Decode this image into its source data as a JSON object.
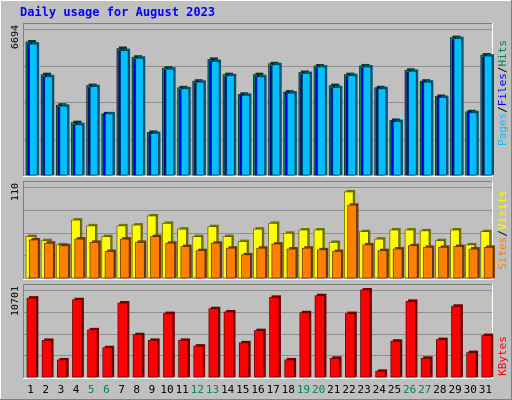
{
  "title": "Daily usage for August 2023",
  "colors": {
    "background": "#c0c0c0",
    "title": "#0000ff",
    "hits": "#00805c",
    "files": "#0000ff",
    "pages": "#00c0ff",
    "visits": "#ffff00",
    "sites": "#ff8000",
    "kbytes": "#ff0000",
    "weekend_day": "#00805c",
    "weekday": "#000000"
  },
  "legends": {
    "top": [
      {
        "label": "Pages",
        "color": "#00c0ff"
      },
      {
        "label": "Files",
        "color": "#0000ff"
      },
      {
        "label": "Hits",
        "color": "#00805c"
      }
    ],
    "middle": [
      {
        "label": "Sites",
        "color": "#ff8000"
      },
      {
        "label": "Visits",
        "color": "#ffff00"
      }
    ],
    "bottom": [
      {
        "label": "KBytes",
        "color": "#ff0000"
      }
    ],
    "separator": "/"
  },
  "chart_data": {
    "type": "bar",
    "title": "Daily usage for August 2023",
    "categories": [
      "1",
      "2",
      "3",
      "4",
      "5",
      "6",
      "7",
      "8",
      "9",
      "10",
      "11",
      "12",
      "13",
      "14",
      "15",
      "16",
      "17",
      "18",
      "19",
      "20",
      "21",
      "22",
      "23",
      "24",
      "25",
      "26",
      "27",
      "28",
      "29",
      "30",
      "31"
    ],
    "weekend_days": [
      "5",
      "6",
      "12",
      "13",
      "19",
      "20",
      "26",
      "27"
    ],
    "panels": [
      {
        "name": "hits-files-pages",
        "ymax_label": "6694",
        "ylim": [
          0,
          6694
        ],
        "series": [
          {
            "name": "Hits",
            "values": [
              6100,
              4600,
              3200,
              2400,
              4100,
              2800,
              5800,
              5400,
              1950,
              4900,
              4000,
              4300,
              5300,
              4600,
              3700,
              4600,
              5100,
              3800,
              4700,
              5000,
              4100,
              4600,
              5000,
              4000,
              2500,
              4800,
              4300,
              3600,
              6300,
              2900,
              5500
            ]
          },
          {
            "name": "Files",
            "values": [
              6000,
              4500,
              3100,
              2300,
              4000,
              2800,
              5700,
              5300,
              1900,
              4800,
              3900,
              4200,
              5200,
              4500,
              3650,
              4500,
              5000,
              3750,
              4600,
              4900,
              4000,
              4500,
              4900,
              3950,
              2450,
              4700,
              4250,
              3550,
              6200,
              2850,
              5400
            ]
          },
          {
            "name": "Pages",
            "values": [
              6000,
              4500,
              3150,
              2300,
              4050,
              2800,
              5700,
              5350,
              1900,
              4850,
              3950,
              4250,
              5200,
              4550,
              3650,
              4500,
              5050,
              3750,
              4650,
              4950,
              4000,
              4550,
              4950,
              3950,
              2450,
              4750,
              4250,
              3550,
              6250,
              2850,
              5450
            ]
          }
        ]
      },
      {
        "name": "visits-sites",
        "ymax_label": "110",
        "ylim": [
          0,
          110
        ],
        "series": [
          {
            "name": "Visits",
            "values": [
              50,
              45,
              40,
              70,
              63,
              50,
              63,
              64,
              75,
              66,
              59,
              50,
              62,
              50,
              44,
              59,
              66,
              54,
              58,
              58,
              43,
              104,
              56,
              47,
              58,
              58,
              57,
              45,
              58,
              40,
              56
            ]
          },
          {
            "name": "Sites",
            "values": [
              46,
              42,
              39,
              47,
              43,
              32,
              47,
              43,
              50,
              42,
              38,
              33,
              42,
              36,
              28,
              36,
              41,
              35,
              36,
              34,
              32,
              88,
              40,
              33,
              35,
              39,
              37,
              37,
              38,
              35,
              37
            ]
          }
        ]
      },
      {
        "name": "kbytes",
        "ymax_label": "10701",
        "ylim": [
          0,
          10701
        ],
        "series": [
          {
            "name": "KBytes",
            "values": [
              9700,
              4500,
              2100,
              9500,
              5800,
              3600,
              9100,
              5200,
              4500,
              7800,
              4500,
              3800,
              8400,
              8000,
              4200,
              5700,
              9800,
              2100,
              7900,
              10000,
              2300,
              7800,
              10700,
              700,
              4400,
              9300,
              2300,
              4600,
              8700,
              3000,
              5100
            ]
          }
        ]
      }
    ]
  }
}
